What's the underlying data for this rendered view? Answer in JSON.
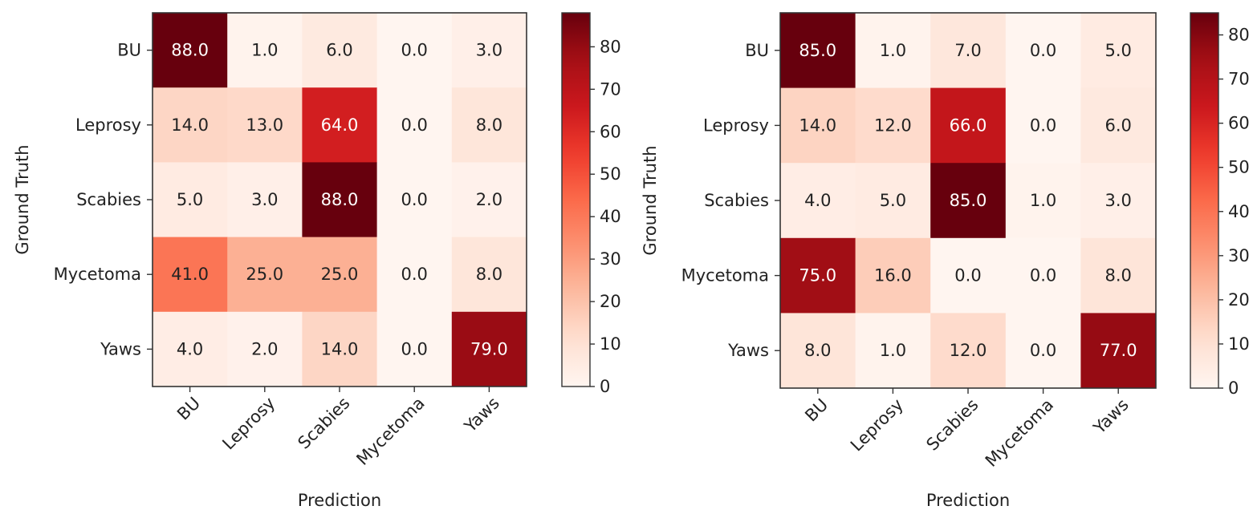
{
  "chart_data": [
    {
      "type": "heatmap",
      "xlabel": "Prediction",
      "ylabel": "Ground Truth",
      "x_categories": [
        "BU",
        "Leprosy",
        "Scabies",
        "Mycetoma",
        "Yaws"
      ],
      "y_categories": [
        "BU",
        "Leprosy",
        "Scabies",
        "Mycetoma",
        "Yaws"
      ],
      "values": [
        [
          88.0,
          1.0,
          6.0,
          0.0,
          3.0
        ],
        [
          14.0,
          13.0,
          64.0,
          0.0,
          8.0
        ],
        [
          5.0,
          3.0,
          88.0,
          0.0,
          2.0
        ],
        [
          41.0,
          25.0,
          25.0,
          0.0,
          8.0
        ],
        [
          4.0,
          2.0,
          14.0,
          0.0,
          79.0
        ]
      ],
      "colormap": "Reds",
      "vmin": 0,
      "vmax": 88,
      "colorbar_ticks": [
        0,
        10,
        20,
        30,
        40,
        50,
        60,
        70,
        80
      ]
    },
    {
      "type": "heatmap",
      "xlabel": "Prediction",
      "ylabel": "Ground Truth",
      "x_categories": [
        "BU",
        "Leprosy",
        "Scabies",
        "Mycetoma",
        "Yaws"
      ],
      "y_categories": [
        "BU",
        "Leprosy",
        "Scabies",
        "Mycetoma",
        "Yaws"
      ],
      "values": [
        [
          85.0,
          1.0,
          7.0,
          0.0,
          5.0
        ],
        [
          14.0,
          12.0,
          66.0,
          0.0,
          6.0
        ],
        [
          4.0,
          5.0,
          85.0,
          1.0,
          3.0
        ],
        [
          75.0,
          16.0,
          0.0,
          0.0,
          8.0
        ],
        [
          8.0,
          1.0,
          12.0,
          0.0,
          77.0
        ]
      ],
      "colormap": "Reds",
      "vmin": 0,
      "vmax": 85,
      "colorbar_ticks": [
        0,
        10,
        20,
        30,
        40,
        50,
        60,
        70,
        80
      ]
    }
  ]
}
